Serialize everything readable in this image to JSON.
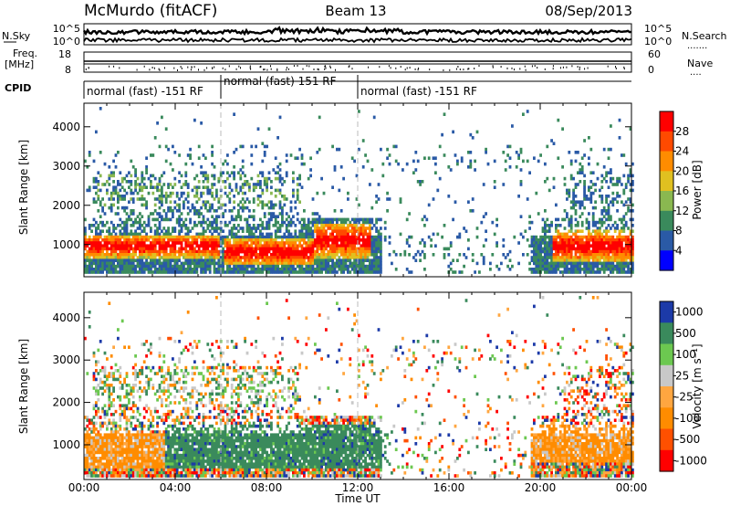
{
  "header": {
    "station": "McMurdo (fitACF)",
    "beam": "Beam 13",
    "date": "08/Sep/2013"
  },
  "noise_panel": {
    "left_label": "N.Sky",
    "right_label": "N.Search",
    "left_ticks": [
      "10^5",
      "10^0"
    ],
    "right_ticks": [
      "10^5",
      "10^0"
    ],
    "dots": "·······"
  },
  "freq_panel": {
    "left_label_1": "Freq.",
    "left_label_2": "[MHz]",
    "left_ticks": [
      "18",
      "8"
    ],
    "right_label": "Nave",
    "right_ticks": [
      "60",
      "0"
    ],
    "dots": "····"
  },
  "cpid": {
    "label": "CPID",
    "segments": [
      {
        "text": "normal (fast) -151 RF",
        "start_hour": 0,
        "end_hour": 6
      },
      {
        "text": "normal (fast) 151 RF",
        "start_hour": 6,
        "end_hour": 12
      },
      {
        "text": "normal (fast) -151 RF",
        "start_hour": 12,
        "end_hour": 24
      }
    ]
  },
  "chart_data": [
    {
      "type": "heatmap",
      "name": "Power",
      "ylabel": "Slant Range [km]",
      "y_ticks": [
        "1000",
        "2000",
        "3000",
        "4000"
      ],
      "ylim": [
        180,
        4600
      ],
      "colorbar_label": "Power [dB]",
      "colorbar_ticks": [
        "28",
        "24",
        "20",
        "16",
        "12",
        "8",
        "4"
      ],
      "colorbar_colors": [
        "#ff0000",
        "#ff4a00",
        "#ff8c00",
        "#e0c020",
        "#8ab850",
        "#3a8a5c",
        "#2a5aa6",
        "#0000ff"
      ],
      "regions": [
        {
          "t0": 0.0,
          "t1": 5.9,
          "r0": 700,
          "r1": 1300,
          "level": "high"
        },
        {
          "t0": 6.1,
          "t1": 10.0,
          "r0": 500,
          "r1": 1200,
          "level": "high"
        },
        {
          "t0": 10.0,
          "t1": 12.5,
          "r0": 700,
          "r1": 1600,
          "level": "high"
        },
        {
          "t0": 20.5,
          "t1": 24.0,
          "r0": 600,
          "r1": 1400,
          "level": "high"
        },
        {
          "t0": 0.5,
          "t1": 9.5,
          "r0": 2000,
          "r1": 2800,
          "level": "mid"
        }
      ]
    },
    {
      "type": "heatmap",
      "name": "Velocity",
      "ylabel": "Slant Range [km]",
      "y_ticks": [
        "1000",
        "2000",
        "3000",
        "4000"
      ],
      "ylim": [
        180,
        4600
      ],
      "colorbar_label": "Velocity [m s⁻¹]",
      "colorbar_ticks": [
        "1000",
        "500",
        "100",
        "25",
        "-25",
        "-100",
        "-500",
        "-1000"
      ],
      "colorbar_colors": [
        "#1c3aa8",
        "#3a8a5c",
        "#6cc850",
        "#c8c8c8",
        "#ffa640",
        "#ff8c00",
        "#ff5000",
        "#ff0000"
      ],
      "regions": [
        {
          "t0": 3.5,
          "t1": 13.5,
          "r0": 500,
          "r1": 1500,
          "level": "green"
        },
        {
          "t0": 0.0,
          "t1": 3.5,
          "r0": 500,
          "r1": 1300,
          "level": "orange"
        },
        {
          "t0": 19.5,
          "t1": 24.0,
          "r0": 600,
          "r1": 1500,
          "level": "orange"
        },
        {
          "t0": 0.5,
          "t1": 9.0,
          "r0": 2000,
          "r1": 2800,
          "level": "mixed"
        }
      ]
    }
  ],
  "x_axis": {
    "ticks": [
      "00:00",
      "04:00",
      "08:00",
      "12:00",
      "16:00",
      "20:00",
      "00:00"
    ],
    "label": "Time UT"
  }
}
